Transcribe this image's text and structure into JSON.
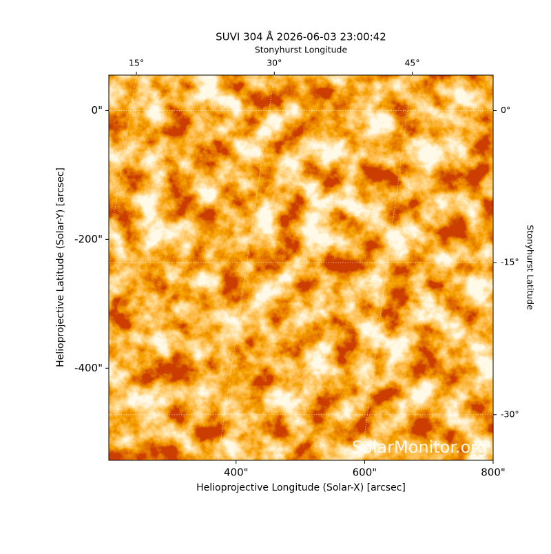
{
  "chart_data": {
    "type": "image",
    "title": "SUVI 304 Å 2026-06-03 23:00:42",
    "xlabel": "Helioprojective Longitude (Solar-X) [arcsec]",
    "ylabel": "Helioprojective Latitude (Solar-Y) [arcsec]",
    "x2label": "Stonyhurst Longitude",
    "y2label": "Stonyhurst Latitude",
    "watermark": "SolarMonitor.org",
    "xlim": [
      202,
      800
    ],
    "xticks": [
      {
        "value": 400,
        "label": "400\""
      },
      {
        "value": 600,
        "label": "600\""
      },
      {
        "value": 800,
        "label": "800\""
      }
    ],
    "ylim": [
      -543,
      55
    ],
    "yticks": [
      {
        "value": 0,
        "label": "0\""
      },
      {
        "value": -200,
        "label": "-200\""
      },
      {
        "value": -400,
        "label": "-400\""
      }
    ],
    "x2lim": [
      12,
      53.8
    ],
    "x2ticks": [
      {
        "value": 15,
        "label": "15°"
      },
      {
        "value": 30,
        "label": "30°"
      },
      {
        "value": 45,
        "label": "45°"
      }
    ],
    "y2lim": [
      -34.5,
      3.5
    ],
    "y2ticks": [
      {
        "value": 0,
        "label": "0°"
      },
      {
        "value": -15,
        "label": "-15°"
      },
      {
        "value": -30,
        "label": "-30°"
      }
    ],
    "grid": true
  }
}
